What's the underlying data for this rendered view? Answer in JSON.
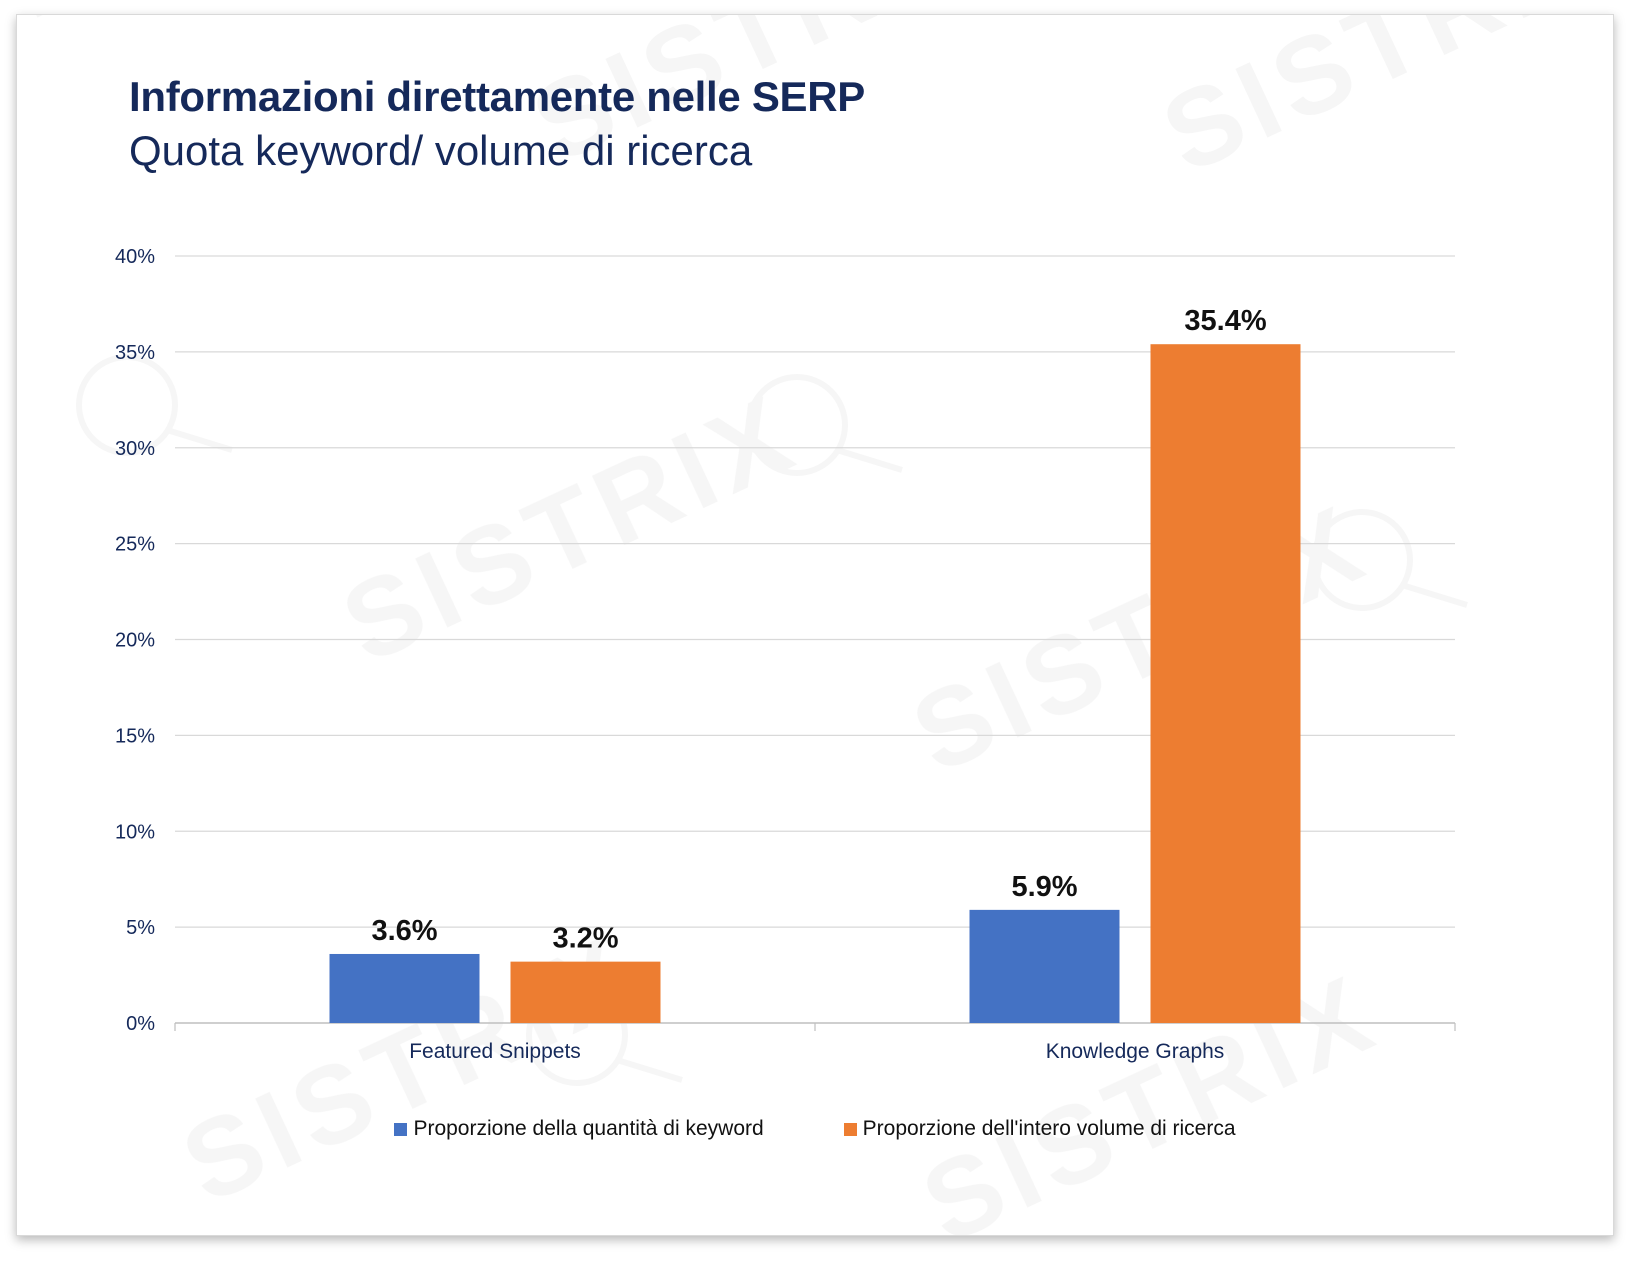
{
  "chart_data": {
    "type": "bar",
    "title": "Informazioni direttamente nelle SERP",
    "subtitle": "Quota keyword/ volume di ricerca",
    "categories": [
      "Featured Snippets",
      "Knowledge Graphs"
    ],
    "series": [
      {
        "name": "Proporzione della quantità di keyword",
        "values": [
          3.6,
          5.9
        ],
        "labels": [
          "3.6%",
          "5.9%"
        ],
        "color": "#4472c4"
      },
      {
        "name": "Proporzione dell'intero volume di ricerca",
        "values": [
          3.2,
          35.4
        ],
        "labels": [
          "3.2%",
          "35.4%"
        ],
        "color": "#ed7d31"
      }
    ],
    "xlabel": "",
    "ylabel": "",
    "ylim": [
      0,
      40
    ],
    "yticks": [
      0,
      5,
      10,
      15,
      20,
      25,
      30,
      35,
      40
    ],
    "ytick_labels": [
      "0%",
      "5%",
      "10%",
      "15%",
      "20%",
      "25%",
      "30%",
      "35%",
      "40%"
    ],
    "grid": true,
    "legend_position": "bottom"
  },
  "watermark": "SISTRIX",
  "colors": {
    "title": "#15295a",
    "axis_text": "#15295a",
    "gridline": "#d9d9d9",
    "data_label": "#111111"
  }
}
